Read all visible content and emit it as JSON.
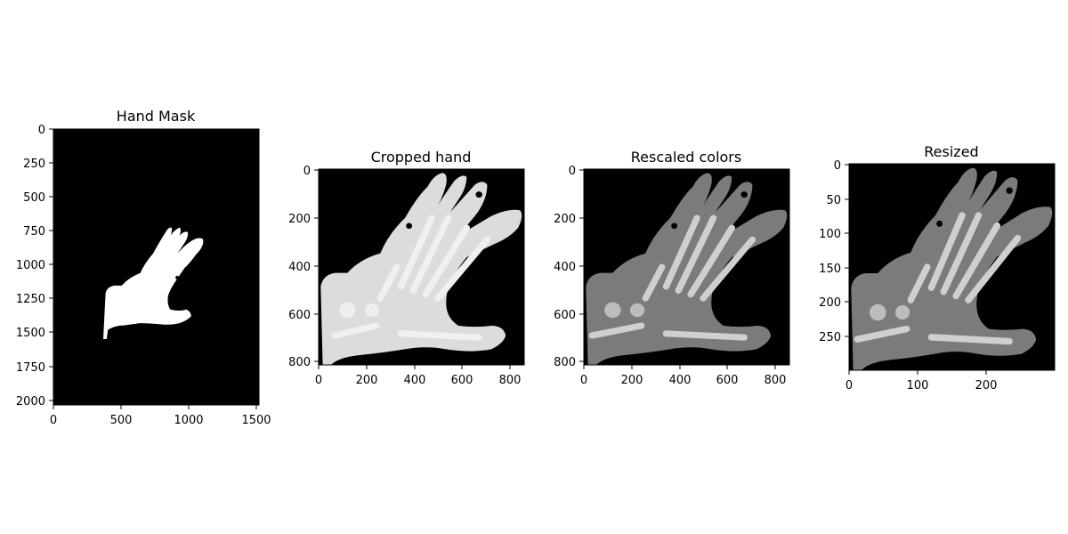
{
  "panels": [
    {
      "title": "Hand Mask",
      "x_ticks": [
        "0",
        "500",
        "1000",
        "1500"
      ],
      "y_ticks": [
        "0",
        "250",
        "500",
        "750",
        "1000",
        "1250",
        "1500",
        "1750",
        "2000"
      ]
    },
    {
      "title": "Cropped hand",
      "x_ticks": [
        "0",
        "200",
        "400",
        "600",
        "800"
      ],
      "y_ticks": [
        "0",
        "200",
        "400",
        "600",
        "800"
      ]
    },
    {
      "title": "Rescaled colors",
      "x_ticks": [
        "0",
        "200",
        "400",
        "600",
        "800"
      ],
      "y_ticks": [
        "0",
        "200",
        "400",
        "600",
        "800"
      ]
    },
    {
      "title": "Resized",
      "x_ticks": [
        "0",
        "100",
        "200"
      ],
      "y_ticks": [
        "0",
        "50",
        "100",
        "150",
        "200",
        "250"
      ]
    }
  ],
  "colors": {
    "background": "#000000",
    "mask": "#ffffff",
    "cropped_tissue": "#dcdcdc",
    "cropped_bone": "#f2f2f2",
    "rescaled_tissue": "#7b7b7b",
    "rescaled_bone": "#d0d0d0"
  }
}
